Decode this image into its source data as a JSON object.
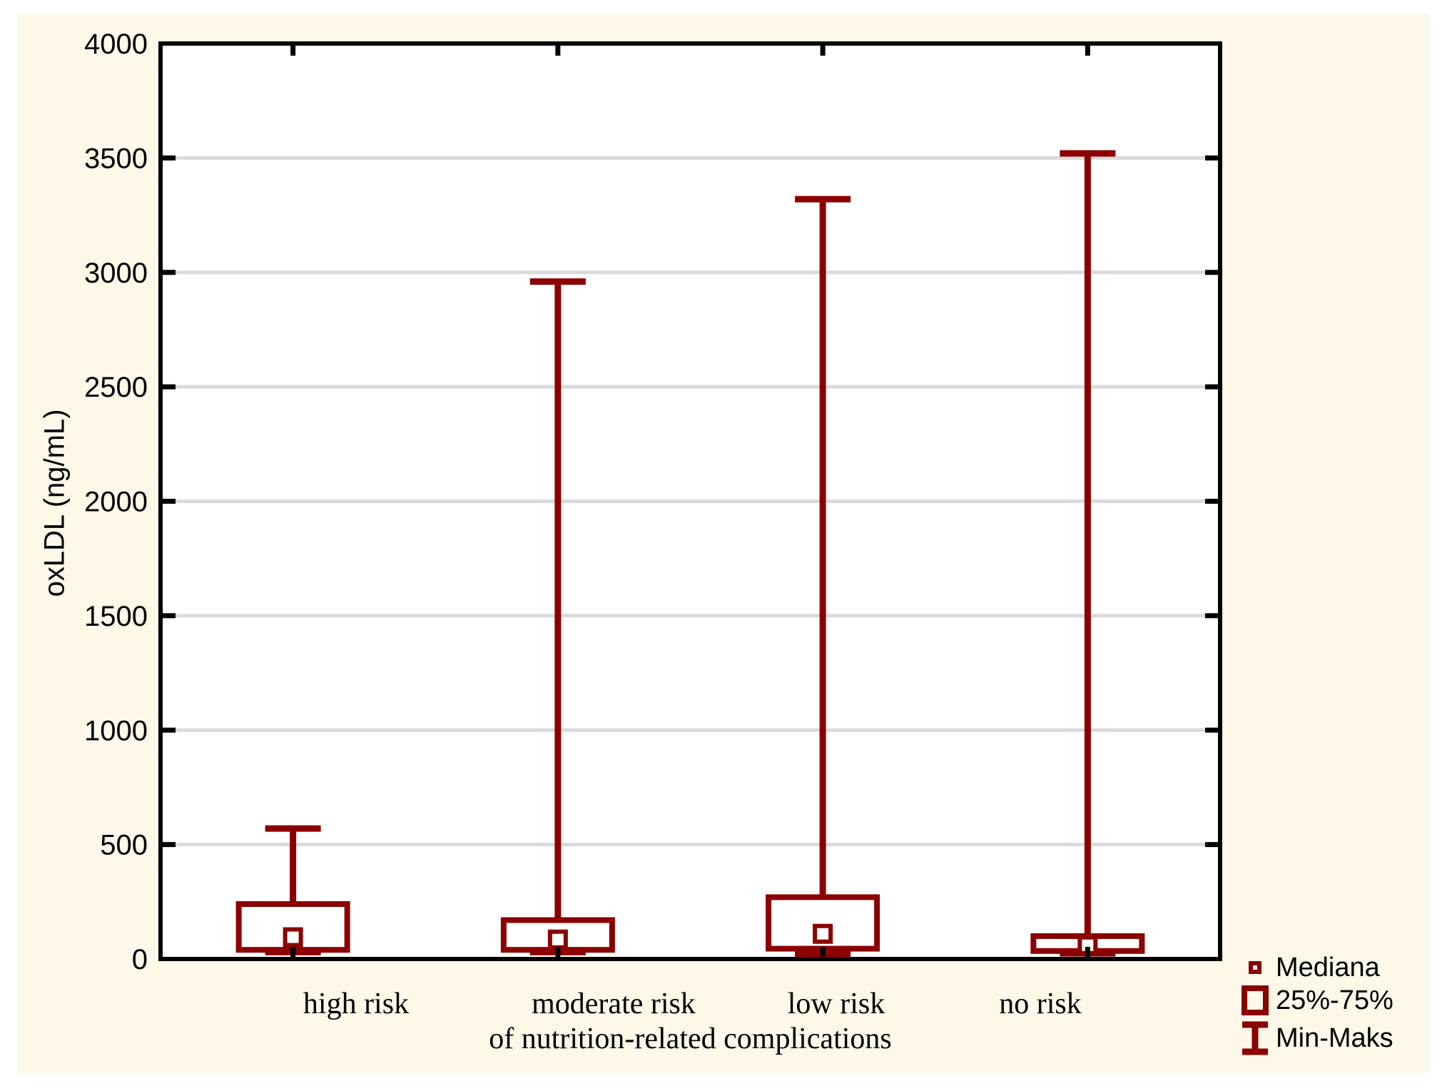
{
  "figure": {
    "page_color": "#FFFFFF",
    "background_color": "#FDF8E8",
    "plot_background": "#FFFFFF",
    "accent_color": "#8B0000",
    "grid_color": "#DADADA",
    "axis_color": "#000000"
  },
  "chart_data": {
    "type": "boxplot",
    "title": "",
    "xlabel": "of nutrition-related complications",
    "ylabel": "oxLDL (ng/mL)",
    "ylim": [
      0,
      4000
    ],
    "yticks": [
      0,
      500,
      1000,
      1500,
      2000,
      2500,
      3000,
      3500,
      4000
    ],
    "grid": "horizontal-only",
    "categories": [
      "high risk",
      "moderate risk",
      "low risk",
      "no risk"
    ],
    "series": [
      {
        "category": "high risk",
        "min": 30,
        "q1": 40,
        "median": 95,
        "q3": 240,
        "max": 570
      },
      {
        "category": "moderate risk",
        "min": 30,
        "q1": 40,
        "median": 85,
        "q3": 170,
        "max": 2960
      },
      {
        "category": "low risk",
        "min": 20,
        "q1": 45,
        "median": 110,
        "q3": 270,
        "max": 3320
      },
      {
        "category": "no risk",
        "min": 25,
        "q1": 35,
        "median": 60,
        "q3": 100,
        "max": 3520
      }
    ],
    "legend_position": "bottom-right"
  },
  "legend": {
    "items": [
      {
        "label": "Mediana",
        "marker": "median-square-icon"
      },
      {
        "label": "25%-75%",
        "marker": "iqr-box-icon"
      },
      {
        "label": "Min-Maks",
        "marker": "min-max-whisker-icon"
      }
    ]
  }
}
